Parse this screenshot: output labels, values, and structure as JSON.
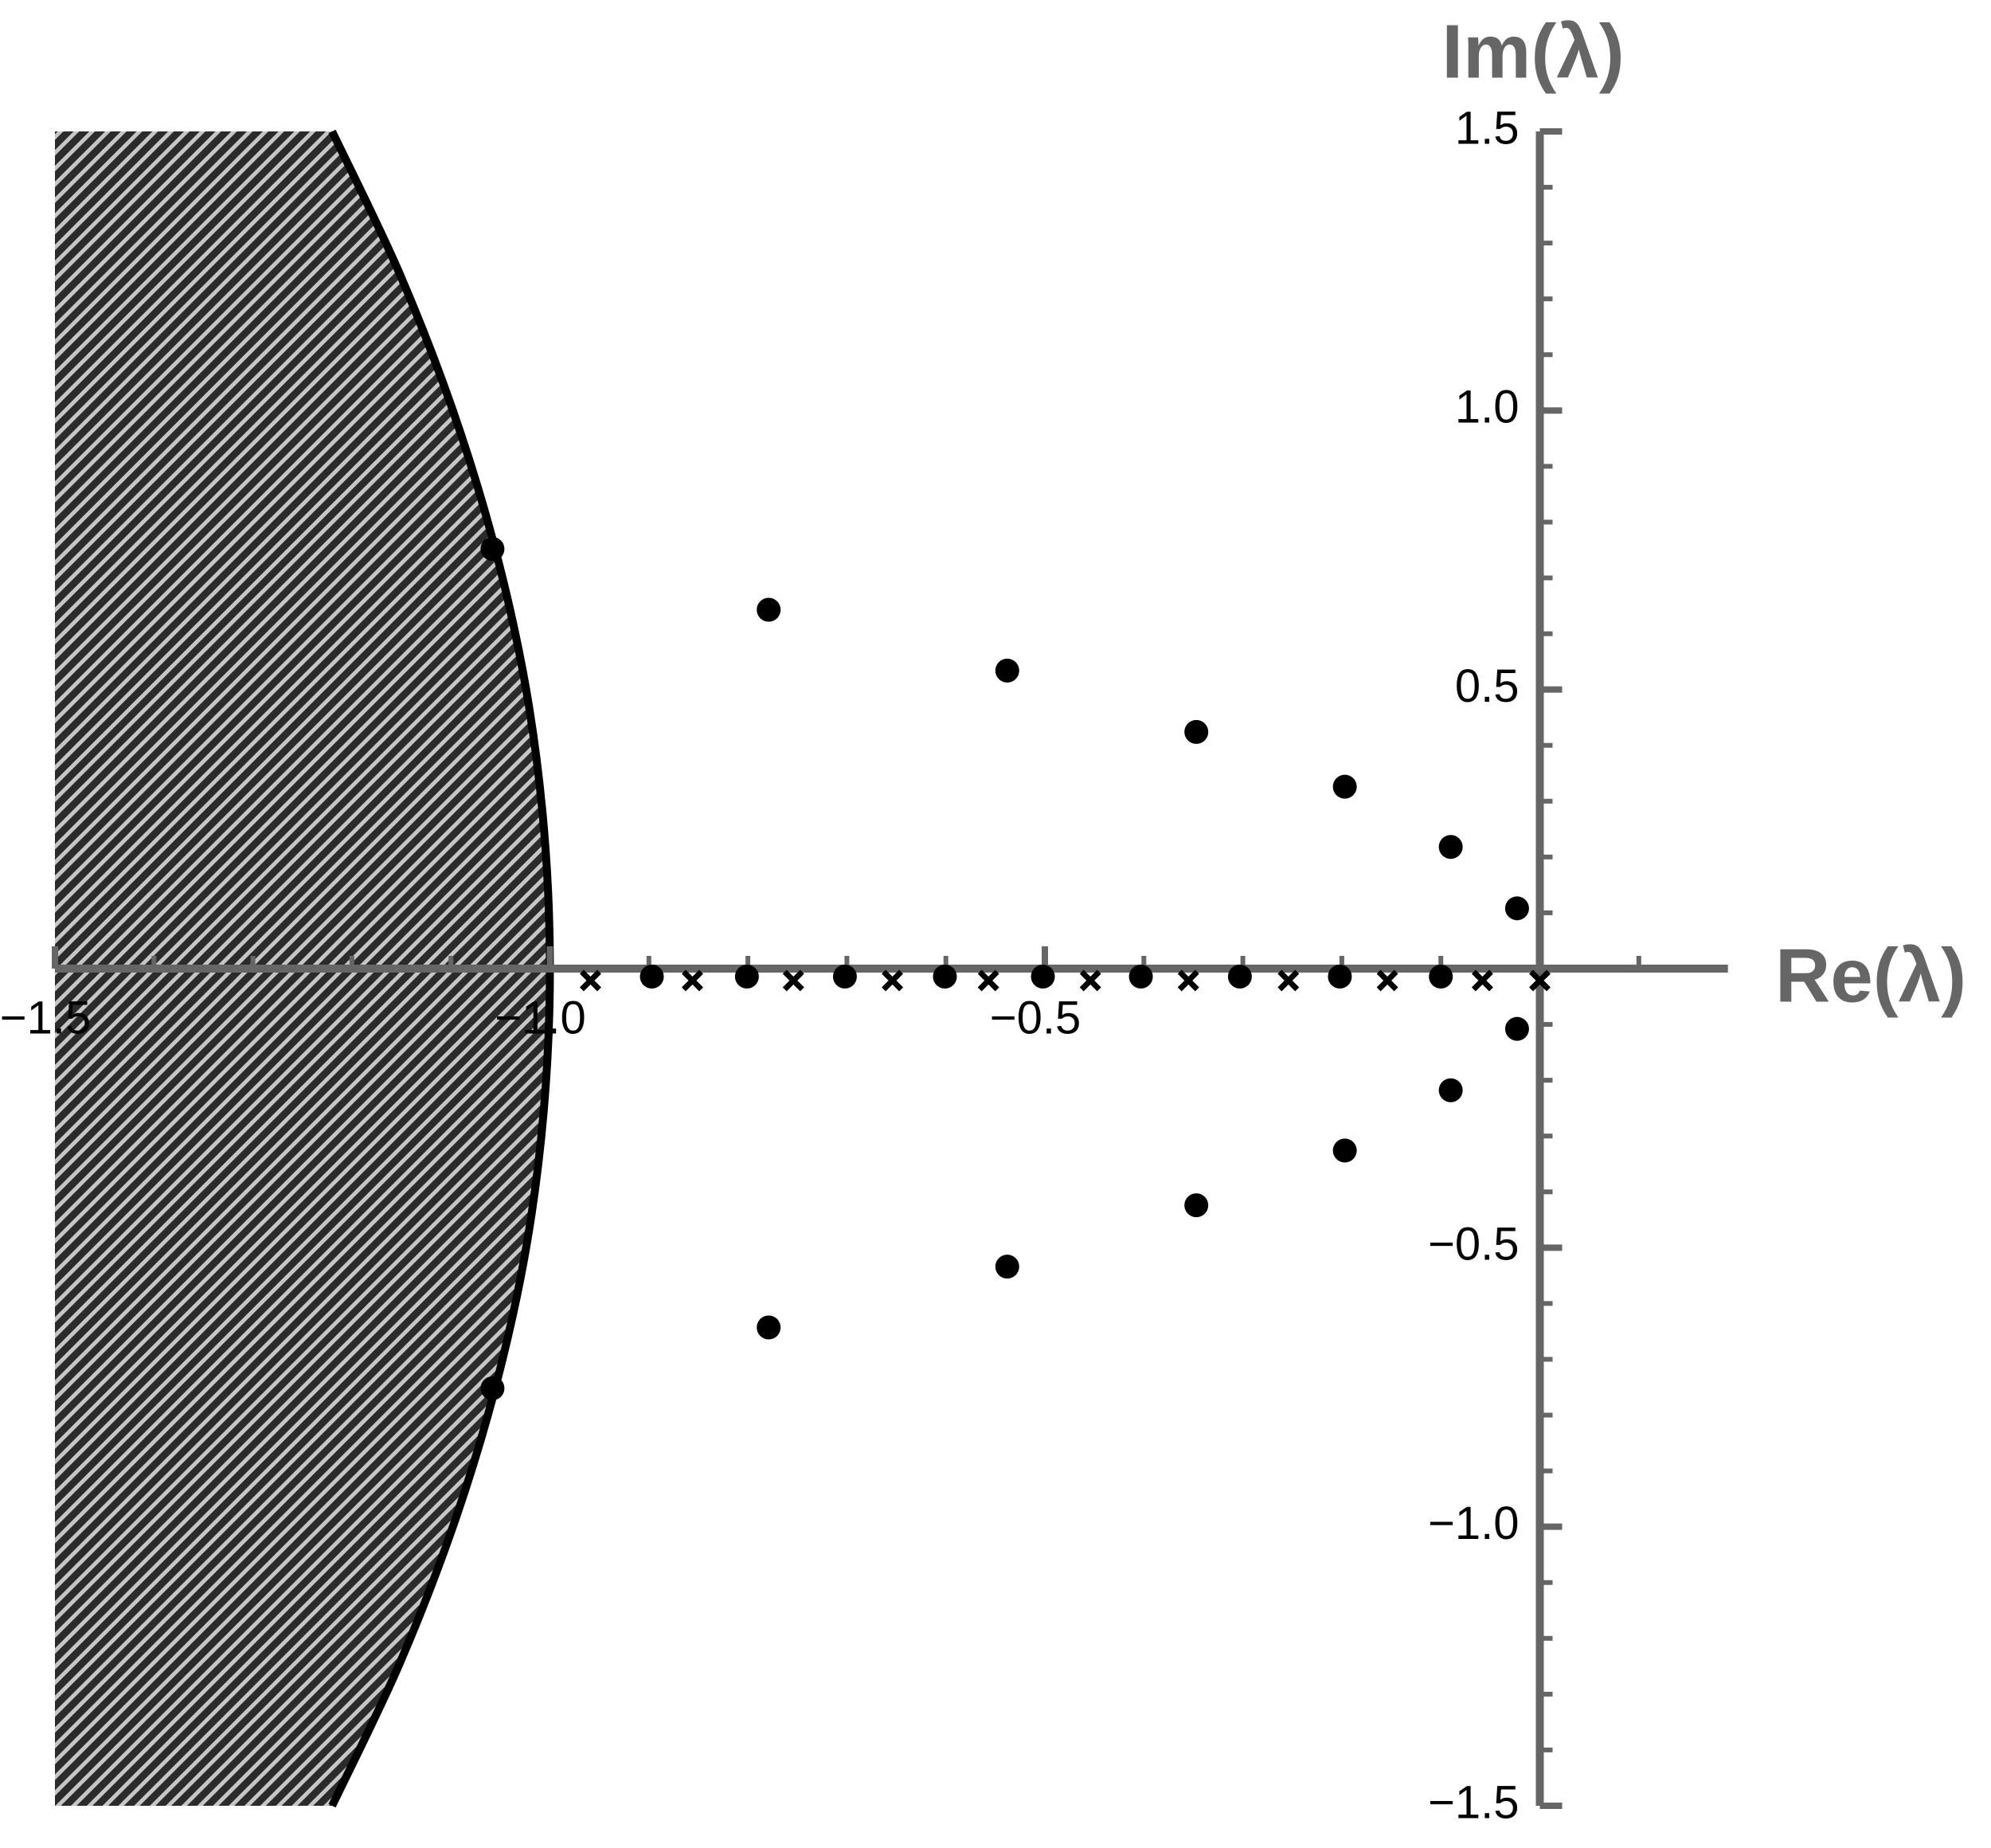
{
  "chart_data": {
    "type": "scatter",
    "x_label": "Re(λ)",
    "y_label": "Im(λ)",
    "xlim": [
      -1.5,
      0.19
    ],
    "ylim": [
      -1.5,
      1.5
    ],
    "xticks": [
      {
        "value": -1.5,
        "label": "−1.5"
      },
      {
        "value": -1,
        "label": "−1.0"
      },
      {
        "value": -0.5,
        "label": "−0.5"
      }
    ],
    "yticks": [
      {
        "value": -1.5,
        "label": "−1.5"
      },
      {
        "value": -1,
        "label": "−1.0"
      },
      {
        "value": -0.5,
        "label": "−0.5"
      },
      0.5,
      {
        "value": 1,
        "label": "1.0"
      },
      1.5
    ],
    "xminorticks": [
      -1.4,
      -1.3,
      -1.2,
      -1.1,
      -0.9,
      -0.8,
      -0.7,
      -0.6,
      -0.4,
      -0.3,
      -0.2,
      -0.1,
      0,
      0.1
    ],
    "yminorticks": [
      -1.4,
      -1.3,
      -1.2,
      -1.1,
      -0.9,
      -0.8,
      -0.7,
      -0.6,
      -0.4,
      -0.3,
      -0.2,
      -0.1,
      0.1,
      0.2,
      0.3,
      0.4,
      0.6,
      0.7,
      0.8,
      0.9,
      1.1,
      1.2,
      1.3,
      1.4
    ],
    "axis_color": "#666666",
    "region": {
      "x": [
        -1.22,
        -1.153,
        -1.098,
        -1.055,
        -1.024,
        -1.006,
        -1,
        -1.006,
        -1.024,
        -1.055,
        -1.098,
        -1.153,
        -1.22
      ],
      "y": [
        1.5,
        1.25,
        1,
        0.75,
        0.5,
        0.25,
        0,
        -0.25,
        -0.5,
        -0.75,
        -1,
        -1.25,
        -1.5
      ]
    },
    "series": [
      {
        "marker": "dot",
        "color": "#000000",
        "x": [
          -1.058,
          -0.779,
          -0.538,
          -0.347,
          -0.197,
          -0.09,
          -0.023,
          -0.023,
          -0.09,
          -0.197,
          -0.347,
          -0.538,
          -0.779,
          -1.058
        ],
        "y": [
          0.752,
          0.643,
          0.534,
          0.424,
          0.326,
          0.218,
          0.108,
          -0.108,
          -0.218,
          -0.326,
          -0.424,
          -0.534,
          -0.643,
          -0.752
        ]
      },
      {
        "marker": "dot",
        "color": "#000000",
        "x": [
          -0.897,
          -0.801,
          -0.702,
          -0.601,
          -0.502,
          -0.403,
          -0.303,
          -0.202,
          -0.1
        ],
        "y": [
          0,
          0,
          0,
          0,
          0,
          0,
          0,
          0,
          0
        ]
      },
      {
        "marker": "cross",
        "color": "#000000",
        "x": [
          -0.959,
          -0.856,
          -0.754,
          -0.654,
          -0.557,
          -0.454,
          -0.355,
          -0.254,
          -0.154,
          -0.058,
          0
        ],
        "y": [
          0,
          0,
          0,
          0,
          0,
          0,
          0,
          0,
          0,
          0,
          0
        ]
      }
    ]
  }
}
